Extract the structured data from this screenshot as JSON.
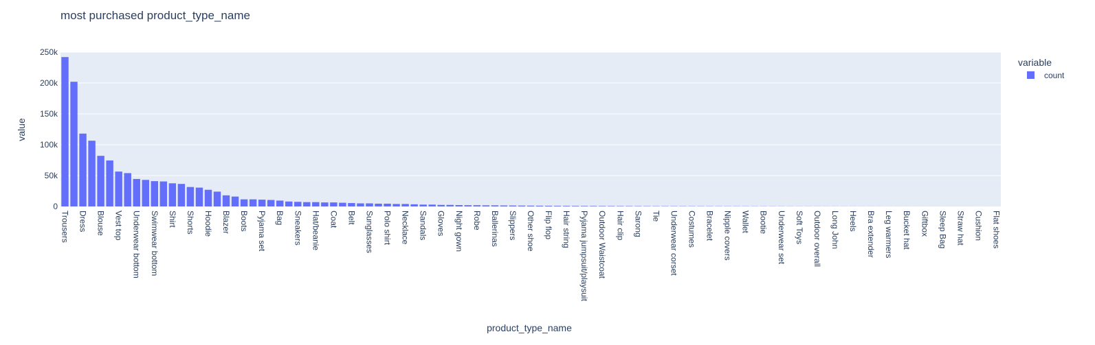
{
  "chart_data": {
    "type": "bar",
    "title": "most purchased product_type_name",
    "xlabel": "product_type_name",
    "ylabel": "value",
    "ylim": [
      0,
      250000
    ],
    "yticks": [
      0,
      50000,
      100000,
      150000,
      200000,
      250000
    ],
    "ytick_labels": [
      "0",
      "50k",
      "100k",
      "150k",
      "200k",
      "250k"
    ],
    "grid": true,
    "legend_position": "top-right",
    "legend_title": "variable",
    "bar_color": "#636efa",
    "plot_bgcolor": "#e5ecf6",
    "categories": [
      "Trousers",
      "",
      "Dress",
      "",
      "Blouse",
      "",
      "Vest top",
      "",
      "Underwear bottom",
      "",
      "Swimwear bottom",
      "",
      "Shirt",
      "",
      "Shorts",
      "",
      "Hoodie",
      "",
      "Blazer",
      "",
      "Boots",
      "",
      "Pyjama set",
      "",
      "Bag",
      "",
      "Sneakers",
      "",
      "Hat/beanie",
      "",
      "Coat",
      "",
      "Belt",
      "",
      "Sunglasses",
      "",
      "Polo shirt",
      "",
      "Necklace",
      "",
      "Sandals",
      "",
      "Gloves",
      "",
      "Night gown",
      "",
      "Robe",
      "",
      "Ballerinas",
      "",
      "Slippers",
      "",
      "Other shoe",
      "",
      "Flip flop",
      "",
      "Hair string",
      "",
      "Pyjama jumpsuit/playsuit",
      "",
      "Outdoor Waistcoat",
      "",
      "Hair clip",
      "",
      "Sarong",
      "",
      "Tie",
      "",
      "Underwear corset",
      "",
      "Costumes",
      "",
      "Bracelet",
      "",
      "Nipple covers",
      "",
      "Wallet",
      "",
      "Bootie",
      "",
      "Underwear set",
      "",
      "Soft Toys",
      "",
      "Outdoor overall",
      "",
      "Long John",
      "",
      "Heels",
      "",
      "Bra extender",
      "",
      "Leg warmers",
      "",
      "Bucket hat",
      "",
      "Giftbox",
      "",
      "Sleep Bag",
      "",
      "Straw hat",
      "",
      "Cushion",
      "",
      "Flat shoes"
    ],
    "series": [
      {
        "name": "count",
        "values": [
          242000,
          202000,
          118000,
          106500,
          82000,
          74500,
          56500,
          54000,
          44500,
          43000,
          41000,
          40500,
          37500,
          36500,
          31500,
          30500,
          27000,
          24000,
          18000,
          16000,
          11500,
          11500,
          11000,
          10500,
          9500,
          8000,
          7500,
          7000,
          7000,
          6500,
          6500,
          6000,
          5500,
          5000,
          5000,
          4500,
          4500,
          4000,
          4000,
          3500,
          3000,
          3000,
          2500,
          2500,
          2200,
          2000,
          2000,
          1800,
          1800,
          1600,
          1500,
          1400,
          1300,
          1200,
          1100,
          1000,
          950,
          900,
          850,
          800,
          750,
          700,
          650,
          600,
          550,
          500,
          480,
          460,
          440,
          420,
          400,
          380,
          360,
          340,
          320,
          300,
          280,
          260,
          240,
          220,
          200,
          180,
          160,
          150,
          140,
          130,
          120,
          110,
          100,
          90,
          80,
          70,
          60,
          55,
          50,
          45,
          40,
          35,
          30,
          25,
          20,
          15,
          12,
          10,
          8
        ]
      }
    ]
  }
}
